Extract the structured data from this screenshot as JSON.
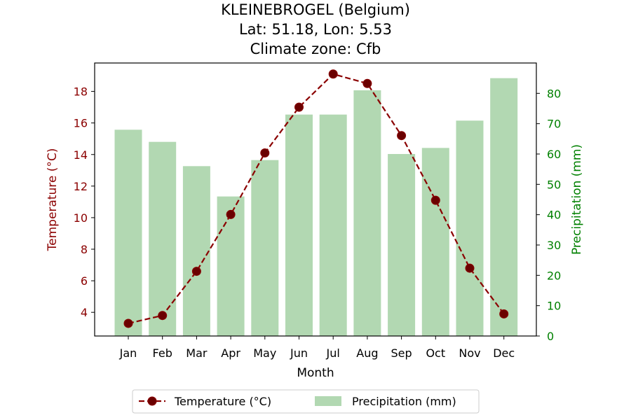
{
  "chart_data": {
    "type": "bar+line",
    "title": [
      "KLEINEBROGEL (Belgium)",
      "Lat: 51.18, Lon: 5.53",
      "Climate zone: Cfb"
    ],
    "xlabel": "Month",
    "categories": [
      "Jan",
      "Feb",
      "Mar",
      "Apr",
      "May",
      "Jun",
      "Jul",
      "Aug",
      "Sep",
      "Oct",
      "Nov",
      "Dec"
    ],
    "series": [
      {
        "name": "Temperature (°C)",
        "kind": "line",
        "axis": "left",
        "color": "#8b0000",
        "style": "dashed with circle markers",
        "values": [
          3.3,
          3.8,
          6.6,
          10.2,
          14.1,
          17.0,
          19.1,
          18.5,
          15.2,
          11.1,
          6.8,
          3.9
        ]
      },
      {
        "name": "Precipitation (mm)",
        "kind": "bar",
        "axis": "right",
        "color": "#b2d8b2",
        "values": [
          68,
          64,
          56,
          46,
          58,
          73,
          73,
          81,
          60,
          62,
          71,
          85
        ]
      }
    ],
    "y_left": {
      "label": "Temperature (°C)",
      "ticks": [
        4,
        6,
        8,
        10,
        12,
        14,
        16,
        18
      ],
      "ylim": [
        2.5,
        19.8
      ],
      "color": "#8b0000"
    },
    "y_right": {
      "label": "Precipitation (mm)",
      "ticks": [
        0,
        10,
        20,
        30,
        40,
        50,
        60,
        70,
        80
      ],
      "ylim": [
        0,
        90
      ],
      "color": "#008000"
    },
    "grid": false,
    "legend": {
      "placement": "bottom-center",
      "entries": [
        "Temperature (°C)",
        "Precipitation (mm)"
      ]
    }
  }
}
